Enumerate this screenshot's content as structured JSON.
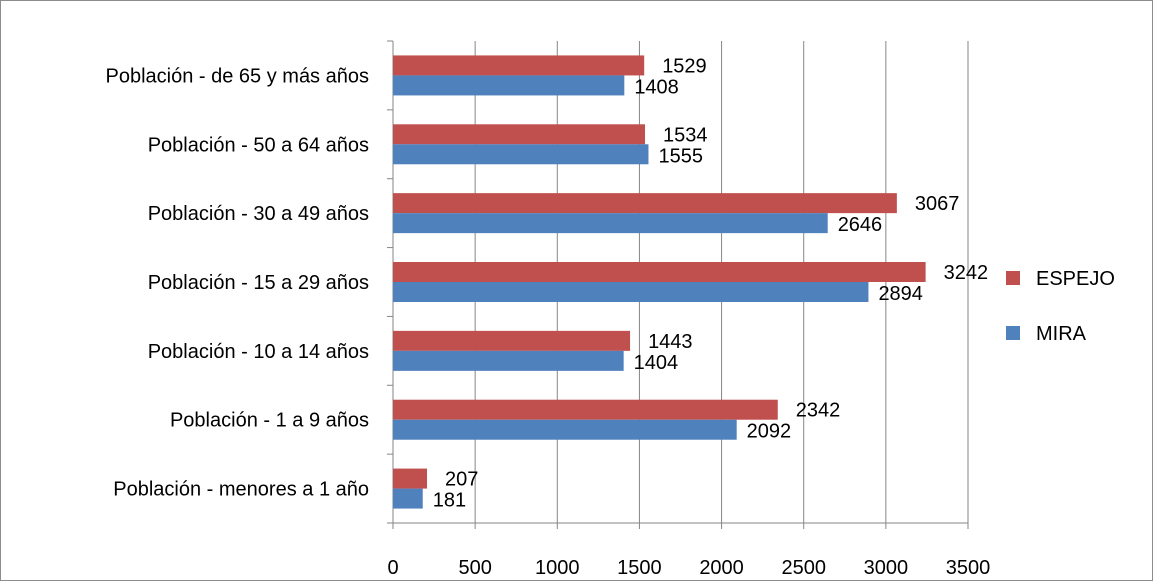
{
  "chart_data": {
    "type": "bar",
    "orientation": "horizontal",
    "categories": [
      "Población - menores a 1 año",
      "Población - 1 a 9 años",
      "Población - 10 a 14 años",
      "Población - 15 a 29 años",
      "Población - 30 a 49 años",
      "Población - 50 a 64 años",
      "Población - de 65 y más años"
    ],
    "series": [
      {
        "name": "ESPEJO",
        "color": "#c0504d",
        "values": [
          207,
          2342,
          1443,
          3242,
          3067,
          1534,
          1529
        ]
      },
      {
        "name": "MIRA",
        "color": "#4f81bd",
        "values": [
          181,
          2092,
          1404,
          2894,
          2646,
          1555,
          1408
        ]
      }
    ],
    "xlim": [
      0,
      3500
    ],
    "xticks": [
      0,
      500,
      1000,
      1500,
      2000,
      2500,
      3000,
      3500
    ],
    "grid": true,
    "legend_position": "right",
    "title": "",
    "xlabel": "",
    "ylabel": ""
  }
}
